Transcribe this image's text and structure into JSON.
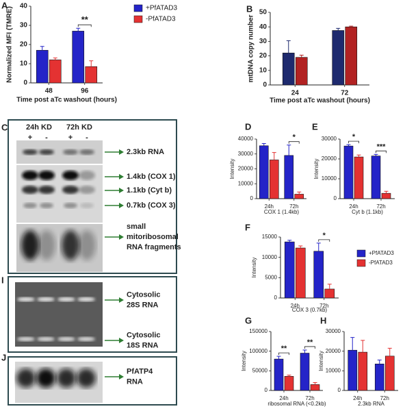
{
  "chart_data": [
    {
      "type": "bar",
      "panel": "A",
      "ylabel": "Normalized MFI (TMRE)",
      "xlabel": "Time post aTc washout (hours)",
      "categories": [
        "48",
        "96"
      ],
      "ylim": [
        0,
        40
      ],
      "yticks": [
        0,
        10,
        20,
        30,
        40
      ],
      "legend": "right",
      "series": [
        {
          "name": "+PfATAD3",
          "color": "#2424c8",
          "values": [
            17,
            27
          ],
          "errors": [
            2,
            1.5
          ]
        },
        {
          "name": "-PfATAD3",
          "color": "#e43232",
          "values": [
            12,
            8.5
          ],
          "errors": [
            1,
            3
          ]
        }
      ],
      "significance": [
        null,
        "**"
      ]
    },
    {
      "type": "bar",
      "panel": "B",
      "ylabel": "mtDNA copy number",
      "xlabel": "Time post aTc washout (hours)",
      "categories": [
        "24",
        "72"
      ],
      "ylim": [
        0,
        50
      ],
      "yticks": [
        0,
        10,
        20,
        30,
        40,
        50
      ],
      "series": [
        {
          "color": "#1e2a6e",
          "values": [
            22,
            37.5
          ],
          "errors": [
            8.5,
            1.5
          ]
        },
        {
          "color": "#b22222",
          "values": [
            19,
            40
          ],
          "errors": [
            1.5,
            0.5
          ]
        }
      ]
    },
    {
      "type": "bar",
      "panel": "D",
      "ylabel": "Intensity",
      "xlabel": "COX 1 (1.4kb)",
      "categories": [
        "24h",
        "72h"
      ],
      "ylim": [
        0,
        40000
      ],
      "yticks": [
        0,
        10000,
        20000,
        30000,
        40000
      ],
      "series": [
        {
          "color": "#2424c8",
          "values": [
            35500,
            29000
          ],
          "errors": [
            1500,
            7000
          ]
        },
        {
          "color": "#e43232",
          "values": [
            26000,
            3000
          ],
          "errors": [
            5000,
            1500
          ]
        }
      ],
      "significance": [
        null,
        "*"
      ]
    },
    {
      "type": "bar",
      "panel": "E",
      "ylabel": "Intensity",
      "xlabel": "Cyt b (1.1kb)",
      "categories": [
        "24h",
        "72h"
      ],
      "ylim": [
        0,
        30000
      ],
      "yticks": [
        0,
        10000,
        20000,
        30000
      ],
      "series": [
        {
          "color": "#2424c8",
          "values": [
            26500,
            21500
          ],
          "errors": [
            700,
            800
          ]
        },
        {
          "color": "#e43232",
          "values": [
            21000,
            2700
          ],
          "errors": [
            1000,
            1000
          ]
        }
      ],
      "significance": [
        "*",
        "***"
      ]
    },
    {
      "type": "bar",
      "panel": "F",
      "ylabel": "Intensity",
      "xlabel": "COX 3 (0.7kb)",
      "categories": [
        "24h",
        "72h"
      ],
      "ylim": [
        0,
        15000
      ],
      "yticks": [
        0,
        5000,
        10000,
        15000
      ],
      "legend": "right",
      "series": [
        {
          "name": "+PfATAD3",
          "color": "#2424c8",
          "values": [
            13800,
            11500
          ],
          "errors": [
            400,
            2000
          ]
        },
        {
          "name": "-PfATAD3",
          "color": "#e43232",
          "values": [
            12300,
            2200
          ],
          "errors": [
            500,
            1200
          ]
        }
      ],
      "significance": [
        null,
        "*"
      ]
    },
    {
      "type": "bar",
      "panel": "G",
      "ylabel": "Intensity",
      "xlabel": "ribosomal RNA (<0.2kb)",
      "categories": [
        "24h",
        "72h"
      ],
      "ylim": [
        0,
        150000
      ],
      "yticks": [
        0,
        50000,
        100000,
        150000
      ],
      "series": [
        {
          "color": "#2424c8",
          "values": [
            80000,
            95000
          ],
          "errors": [
            7000,
            8000
          ]
        },
        {
          "color": "#e43232",
          "values": [
            36000,
            15000
          ],
          "errors": [
            3000,
            5000
          ]
        }
      ],
      "significance": [
        "**",
        "**"
      ]
    },
    {
      "type": "bar",
      "panel": "H",
      "ylabel": "Intensity",
      "xlabel": "2.3kb RNA",
      "categories": [
        "24h",
        "72h"
      ],
      "ylim": [
        0,
        30000
      ],
      "yticks": [
        0,
        10000,
        20000,
        30000
      ],
      "series": [
        {
          "color": "#2424c8",
          "values": [
            20500,
            13500
          ],
          "errors": [
            6500,
            2000
          ]
        },
        {
          "color": "#e43232",
          "values": [
            19500,
            17500
          ],
          "errors": [
            6000,
            4000
          ]
        }
      ]
    }
  ],
  "blots": [
    {
      "panel": "C",
      "headers": [
        "24h KD",
        "72h KD"
      ],
      "lanes": [
        "+",
        "-",
        "+",
        "-"
      ],
      "labels": [
        [
          "2.3kb RNA"
        ],
        [
          "1.4kb (COX 1)"
        ],
        [
          "1.1kb (Cyt b)"
        ],
        [
          "0.7kb (COX 3)"
        ],
        [
          "small",
          "mitoribosomal",
          "RNA fragments"
        ]
      ]
    },
    {
      "panel": "I",
      "labels": [
        [
          "Cytosolic",
          "28S RNA"
        ],
        [
          "Cytosolic",
          "18S RNA"
        ]
      ]
    },
    {
      "panel": "J",
      "labels": [
        [
          "PfATP4",
          "RNA"
        ]
      ]
    }
  ]
}
